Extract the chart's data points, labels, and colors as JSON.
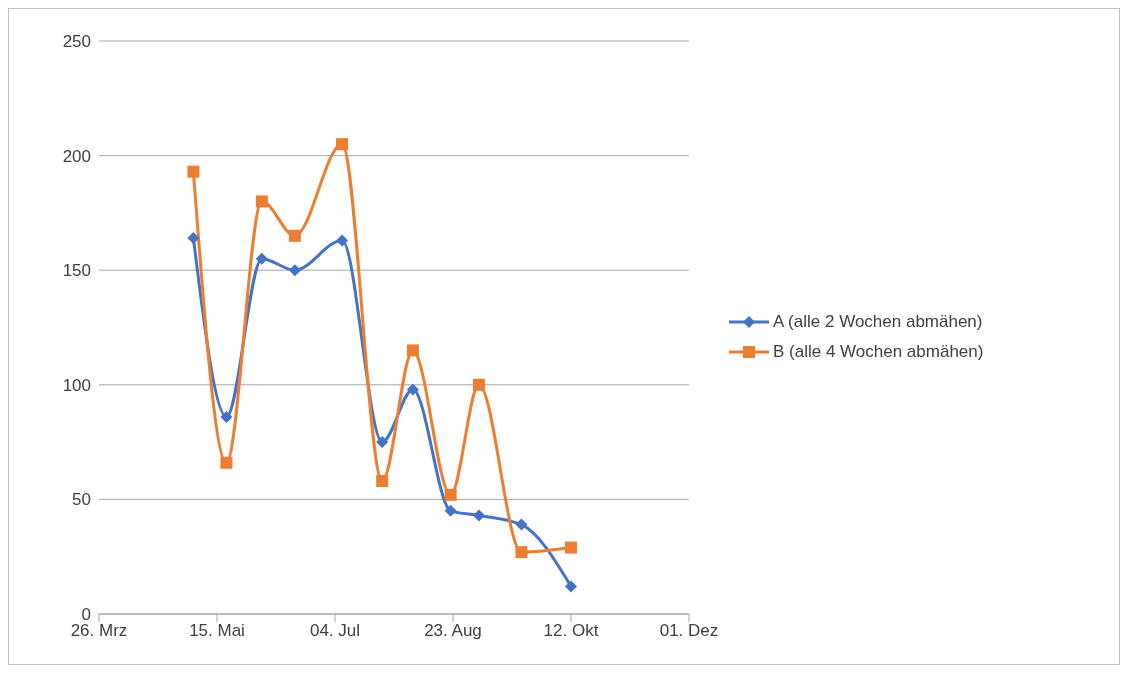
{
  "chart_data": {
    "type": "line",
    "x": [
      "--05-05",
      "--05-19",
      "--06-03",
      "--06-17",
      "--07-07",
      "--07-24",
      "--08-06",
      "--08-22",
      "--09-03",
      "--09-21",
      "--10-12"
    ],
    "series": [
      {
        "name": "A (alle 2 Wochen abmähen)",
        "color": "#4472c4",
        "marker": "diamond",
        "values": [
          164,
          86,
          155,
          150,
          163,
          75,
          98,
          45,
          43,
          39,
          12
        ]
      },
      {
        "name": "B (alle 4 Wochen abmähen)",
        "color": "#ed7d31",
        "marker": "square",
        "values": [
          193,
          66,
          180,
          165,
          205,
          58,
          115,
          52,
          100,
          27,
          29
        ]
      }
    ],
    "xlim": [
      "--03-26",
      "--12-01"
    ],
    "xticks": [
      {
        "value": "--03-26",
        "label": "26. Mrz"
      },
      {
        "value": "--05-15",
        "label": "15. Mai"
      },
      {
        "value": "--07-04",
        "label": "04. Jul"
      },
      {
        "value": "--08-23",
        "label": "23. Aug"
      },
      {
        "value": "--10-12",
        "label": "12. Okt"
      },
      {
        "value": "--12-01",
        "label": "01. Dez"
      }
    ],
    "ylim": [
      0,
      250
    ],
    "yticks": [
      0,
      50,
      100,
      150,
      200,
      250
    ],
    "grid": "y",
    "legend": "right",
    "line_style": "solid"
  }
}
